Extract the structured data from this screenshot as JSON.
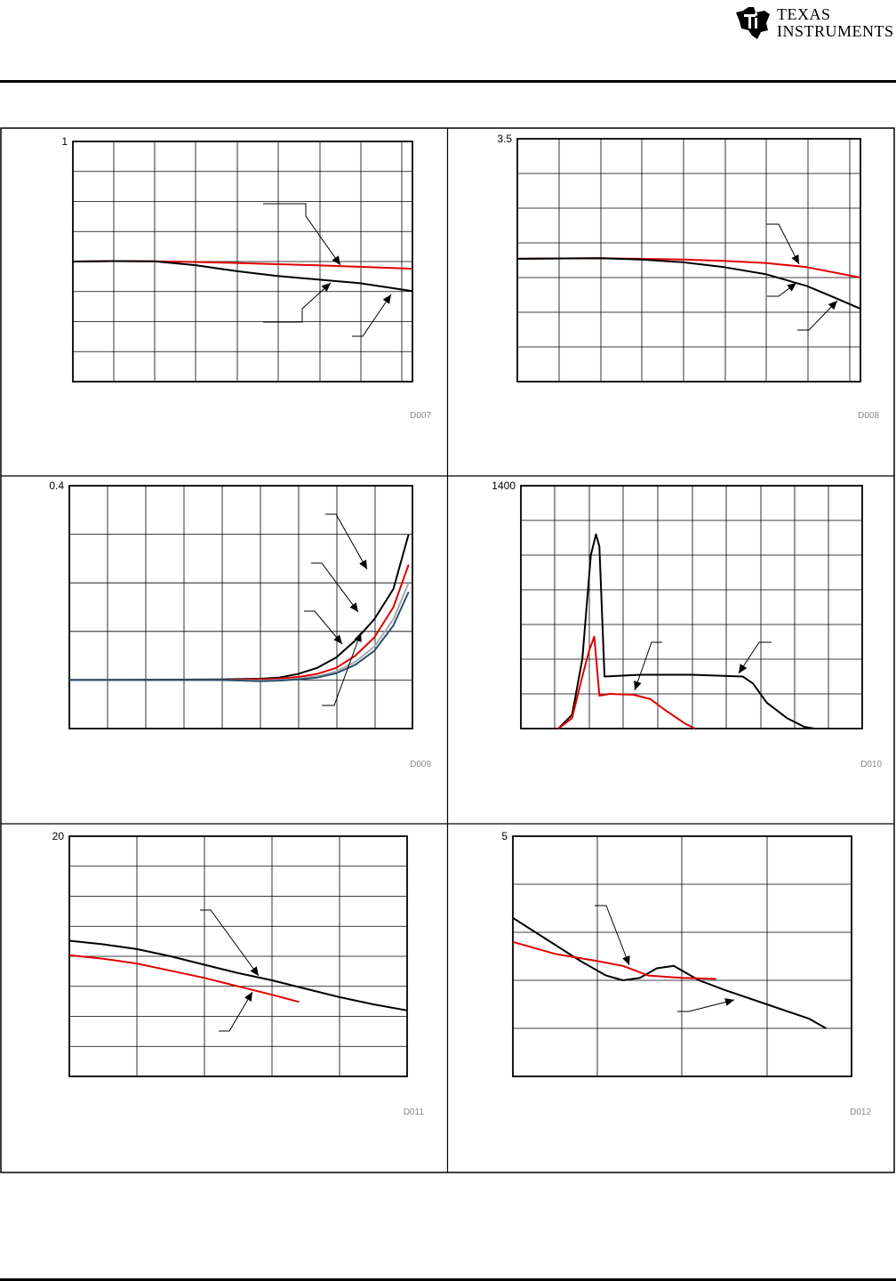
{
  "header": {
    "company_line1": "TEXAS",
    "company_line2": "INSTRUMENTS",
    "logo_icon": "ti-logo-icon"
  },
  "chart_data": [
    {
      "type": "line",
      "id": "D007",
      "xlim": [
        0,
        8.3
      ],
      "ylim": [
        0,
        1
      ],
      "ytick_labels": [
        "1"
      ],
      "grid": true,
      "series": [
        {
          "color": "#e00000",
          "x": [
            0,
            1,
            2,
            3,
            4,
            5,
            6,
            7,
            8.3
          ],
          "y": [
            0.5,
            0.502,
            0.501,
            0.498,
            0.494,
            0.489,
            0.484,
            0.478,
            0.47
          ]
        },
        {
          "color": "#000000",
          "x": [
            0,
            1,
            2,
            3,
            4,
            5,
            6,
            7,
            8.3
          ],
          "y": [
            0.5,
            0.502,
            0.501,
            0.485,
            0.46,
            0.44,
            0.425,
            0.41,
            0.377
          ]
        }
      ]
    },
    {
      "type": "line",
      "id": "D008",
      "xlim": [
        0,
        8.3
      ],
      "ylim": [
        0,
        3.5
      ],
      "ytick_labels": [
        "3.5"
      ],
      "grid": true,
      "series": [
        {
          "color": "#e00000",
          "x": [
            0,
            2,
            4,
            5,
            6,
            7,
            8.3
          ],
          "y": [
            1.77,
            1.78,
            1.76,
            1.74,
            1.71,
            1.65,
            1.5
          ]
        },
        {
          "color": "#000000",
          "x": [
            0,
            2,
            3,
            4,
            5,
            6,
            7,
            7.6,
            8.3
          ],
          "y": [
            1.77,
            1.78,
            1.76,
            1.72,
            1.65,
            1.55,
            1.38,
            1.23,
            1.05
          ]
        }
      ]
    },
    {
      "type": "line",
      "id": "D009",
      "xlim": [
        0,
        9
      ],
      "ylim": [
        0,
        0.4
      ],
      "ytick_labels": [
        "0.4"
      ],
      "grid": true,
      "series": [
        {
          "color": "#000000",
          "x": [
            0,
            4,
            5,
            5.5,
            6,
            6.5,
            7,
            7.5,
            8,
            8.5,
            8.9
          ],
          "y": [
            0.08,
            0.081,
            0.082,
            0.084,
            0.09,
            0.1,
            0.117,
            0.145,
            0.18,
            0.23,
            0.32
          ]
        },
        {
          "color": "#e00000",
          "x": [
            0,
            4,
            5,
            5.5,
            6,
            6.5,
            7,
            7.5,
            8,
            8.5,
            8.9
          ],
          "y": [
            0.08,
            0.08,
            0.081,
            0.082,
            0.085,
            0.09,
            0.1,
            0.12,
            0.15,
            0.2,
            0.27
          ]
        },
        {
          "color": "#a8a8a8",
          "x": [
            0,
            4,
            5,
            5.5,
            6,
            6.5,
            7,
            7.5,
            8,
            8.5,
            8.9
          ],
          "y": [
            0.08,
            0.08,
            0.079,
            0.08,
            0.082,
            0.086,
            0.094,
            0.11,
            0.135,
            0.18,
            0.24
          ]
        },
        {
          "color": "#2e4f6e",
          "x": [
            0,
            4,
            5,
            5.5,
            6,
            6.5,
            7,
            7.5,
            8,
            8.5,
            8.9
          ],
          "y": [
            0.08,
            0.08,
            0.078,
            0.079,
            0.081,
            0.084,
            0.091,
            0.105,
            0.128,
            0.17,
            0.225
          ]
        }
      ]
    },
    {
      "type": "line",
      "id": "D010",
      "xlim": [
        0,
        10
      ],
      "ylim": [
        0,
        1400
      ],
      "ytick_labels": [
        "1400"
      ],
      "grid": true,
      "series": [
        {
          "color": "#000000",
          "x": [
            1.1,
            1.5,
            1.8,
            2.05,
            2.2,
            2.3,
            2.45,
            3.5,
            5,
            6.5,
            6.8,
            7.2,
            7.8,
            8.3,
            8.6
          ],
          "y": [
            0,
            80,
            400,
            1000,
            1120,
            1050,
            300,
            310,
            310,
            300,
            260,
            150,
            60,
            10,
            0
          ]
        },
        {
          "color": "#e00000",
          "x": [
            1.1,
            1.5,
            1.8,
            2.0,
            2.15,
            2.3,
            2.6,
            3.3,
            3.8,
            4.2,
            4.8,
            5.1
          ],
          "y": [
            0,
            60,
            300,
            450,
            530,
            190,
            200,
            195,
            170,
            110,
            30,
            0
          ]
        }
      ]
    },
    {
      "type": "line",
      "id": "D011",
      "xlim": [
        0,
        5
      ],
      "ylim": [
        0,
        20
      ],
      "ytick_labels": [
        "20"
      ],
      "grid": true,
      "series": [
        {
          "color": "#000000",
          "x": [
            0,
            0.5,
            1,
            1.5,
            2,
            2.5,
            3,
            3.5,
            4,
            4.5,
            5
          ],
          "y": [
            11.3,
            11.0,
            10.6,
            10.0,
            9.3,
            8.6,
            8.0,
            7.3,
            6.6,
            6.0,
            5.5
          ]
        },
        {
          "color": "#e00000",
          "x": [
            0,
            0.5,
            1,
            1.5,
            2,
            2.5,
            3,
            3.4
          ],
          "y": [
            10.1,
            9.8,
            9.4,
            8.8,
            8.2,
            7.5,
            6.8,
            6.2
          ]
        }
      ]
    },
    {
      "type": "line",
      "id": "D012",
      "xlim": [
        0,
        4
      ],
      "ylim": [
        0,
        5
      ],
      "ytick_labels": [
        "5"
      ],
      "grid": true,
      "series": [
        {
          "color": "#000000",
          "x": [
            0,
            0.4,
            0.8,
            1.1,
            1.3,
            1.5,
            1.7,
            1.9,
            2.2,
            2.5,
            3,
            3.5,
            3.7
          ],
          "y": [
            3.3,
            2.85,
            2.4,
            2.1,
            2.0,
            2.05,
            2.25,
            2.3,
            2.0,
            1.8,
            1.5,
            1.2,
            1.0
          ]
        },
        {
          "color": "#e00000",
          "x": [
            0,
            0.5,
            1,
            1.3,
            1.6,
            2.0,
            2.4
          ],
          "y": [
            2.8,
            2.55,
            2.4,
            2.3,
            2.1,
            2.05,
            2.03
          ]
        }
      ]
    }
  ]
}
